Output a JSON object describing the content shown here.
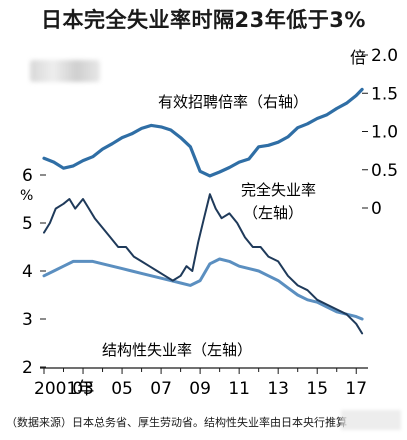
{
  "title": "日本完全失业率时隔23年低于3%",
  "source_note": "（数据来源）日本总务省、厚生劳动省。结构性失业率由日本央行推算",
  "colors": {
    "unemployment": "#1f3a5a",
    "structural": "#5b8fc0",
    "job_ratio": "#2f6ea5",
    "text": "#1a1a1a"
  },
  "chart_data": {
    "type": "line",
    "title": "日本完全失业率时隔23年低于3%",
    "x_tick_labels": [
      "2001年",
      "03",
      "05",
      "07",
      "09",
      "11",
      "13",
      "15",
      "17"
    ],
    "x_tick_years": [
      2001,
      2003,
      2005,
      2007,
      2009,
      2011,
      2013,
      2015,
      2017
    ],
    "xlim": [
      2001,
      2017.5
    ],
    "left_axis": {
      "unit": "%",
      "ticks": [
        "2",
        "3",
        "4",
        "5",
        "6"
      ],
      "ylim": [
        2,
        6
      ]
    },
    "right_axis": {
      "unit": "倍",
      "ticks": [
        "0",
        "0.5",
        "1.0",
        "1.5",
        "2.0"
      ],
      "ylim": [
        0,
        2
      ]
    },
    "series": [
      {
        "name": "有效招聘倍率（右轴）",
        "axis": "right",
        "x": [
          2001.0,
          2001.5,
          2002.0,
          2002.5,
          2003.0,
          2003.5,
          2004.0,
          2004.5,
          2005.0,
          2005.5,
          2006.0,
          2006.5,
          2007.0,
          2007.5,
          2008.0,
          2008.5,
          2009.0,
          2009.5,
          2010.0,
          2010.5,
          2011.0,
          2011.5,
          2012.0,
          2012.5,
          2013.0,
          2013.5,
          2014.0,
          2014.5,
          2015.0,
          2015.5,
          2016.0,
          2016.5,
          2017.0,
          2017.3
        ],
        "y": [
          0.65,
          0.6,
          0.52,
          0.55,
          0.62,
          0.67,
          0.77,
          0.84,
          0.92,
          0.97,
          1.04,
          1.08,
          1.06,
          1.02,
          0.92,
          0.8,
          0.48,
          0.42,
          0.47,
          0.53,
          0.6,
          0.64,
          0.8,
          0.82,
          0.86,
          0.93,
          1.05,
          1.1,
          1.17,
          1.22,
          1.3,
          1.37,
          1.47,
          1.55
        ]
      },
      {
        "name": "完全失业率（左轴）",
        "axis": "left",
        "x": [
          2001.0,
          2001.3,
          2001.6,
          2002.0,
          2002.3,
          2002.6,
          2003.0,
          2003.3,
          2003.6,
          2004.0,
          2004.4,
          2004.8,
          2005.2,
          2005.6,
          2006.0,
          2006.4,
          2006.8,
          2007.2,
          2007.6,
          2008.0,
          2008.3,
          2008.6,
          2008.9,
          2009.2,
          2009.5,
          2009.8,
          2010.1,
          2010.5,
          2010.9,
          2011.3,
          2011.7,
          2012.1,
          2012.5,
          2013.0,
          2013.5,
          2014.0,
          2014.5,
          2015.0,
          2015.5,
          2016.0,
          2016.5,
          2017.0,
          2017.3
        ],
        "y": [
          4.8,
          5.0,
          5.3,
          5.4,
          5.5,
          5.3,
          5.5,
          5.3,
          5.1,
          4.9,
          4.7,
          4.5,
          4.5,
          4.3,
          4.2,
          4.1,
          4.0,
          3.9,
          3.8,
          3.9,
          4.1,
          4.0,
          4.6,
          5.1,
          5.6,
          5.3,
          5.1,
          5.2,
          5.0,
          4.7,
          4.5,
          4.5,
          4.3,
          4.2,
          3.9,
          3.7,
          3.6,
          3.4,
          3.3,
          3.2,
          3.1,
          2.9,
          2.7
        ]
      },
      {
        "name": "结构性失业率（左轴）",
        "axis": "left",
        "x": [
          2001.0,
          2001.5,
          2002.0,
          2002.5,
          2003.0,
          2003.5,
          2004.0,
          2004.5,
          2005.0,
          2005.5,
          2006.0,
          2006.5,
          2007.0,
          2007.5,
          2008.0,
          2008.5,
          2009.0,
          2009.5,
          2010.0,
          2010.5,
          2011.0,
          2011.5,
          2012.0,
          2012.5,
          2013.0,
          2013.5,
          2014.0,
          2014.5,
          2015.0,
          2015.5,
          2016.0,
          2016.5,
          2017.0,
          2017.3
        ],
        "y": [
          3.9,
          4.0,
          4.1,
          4.2,
          4.2,
          4.2,
          4.15,
          4.1,
          4.05,
          4.0,
          3.95,
          3.9,
          3.85,
          3.8,
          3.75,
          3.7,
          3.8,
          4.15,
          4.25,
          4.2,
          4.1,
          4.05,
          4.0,
          3.9,
          3.8,
          3.65,
          3.5,
          3.4,
          3.35,
          3.25,
          3.15,
          3.1,
          3.05,
          3.0
        ]
      }
    ],
    "annotations": {
      "job_ratio": "有效招聘倍率（右轴）",
      "unemployment_line1": "完全失业率",
      "unemployment_line2": "（左轴）",
      "structural": "结构性失业率（左轴）"
    }
  }
}
